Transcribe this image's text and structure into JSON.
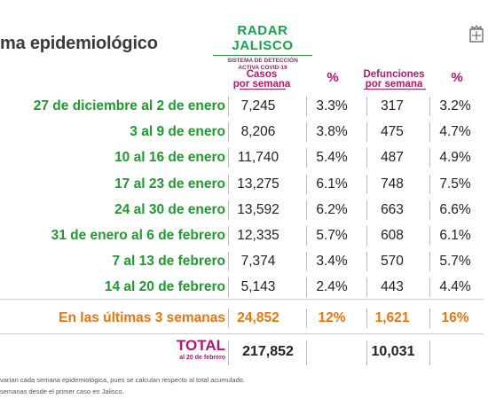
{
  "title": "ma epidemiológico",
  "logo": {
    "name": "RADAR JALISCO",
    "sub1": "SISTEMA DE DETECCIÓN",
    "sub2": "ACTIVA COVID-19"
  },
  "crest_icon": "jalisco-crest-icon",
  "headers": {
    "cases1": "Casos",
    "cases2": "por semana",
    "pct": "%",
    "deaths1": "Defunciones",
    "deaths2": "por semana",
    "pct2": "%"
  },
  "rows": [
    {
      "label": "27 de diciembre al 2 de enero",
      "cases": "7,245",
      "cases_pct": "3.3%",
      "deaths": "317",
      "deaths_pct": "3.2%"
    },
    {
      "label": "3 al 9 de enero",
      "cases": "8,206",
      "cases_pct": "3.8%",
      "deaths": "475",
      "deaths_pct": "4.7%"
    },
    {
      "label": "10 al 16 de enero",
      "cases": "11,740",
      "cases_pct": "5.4%",
      "deaths": "487",
      "deaths_pct": "4.9%"
    },
    {
      "label": "17 al 23 de enero",
      "cases": "13,275",
      "cases_pct": "6.1%",
      "deaths": "748",
      "deaths_pct": "7.5%"
    },
    {
      "label": "24 al 30 de enero",
      "cases": "13,592",
      "cases_pct": "6.2%",
      "deaths": "663",
      "deaths_pct": "6.6%"
    },
    {
      "label": "31 de enero al 6 de febrero",
      "cases": "12,335",
      "cases_pct": "5.7%",
      "deaths": "608",
      "deaths_pct": "6.1%"
    },
    {
      "label": "7 al 13 de febrero",
      "cases": "7,374",
      "cases_pct": "3.4%",
      "deaths": "570",
      "deaths_pct": "5.7%"
    },
    {
      "label": "14 al 20 de febrero",
      "cases": "5,143",
      "cases_pct": "2.4%",
      "deaths": "443",
      "deaths_pct": "4.4%"
    }
  ],
  "summary": {
    "label": "En las últimas 3 semanas",
    "cases": "24,852",
    "cases_pct": "12%",
    "deaths": "1,621",
    "deaths_pct": "16%"
  },
  "total": {
    "label": "TOTAL",
    "sub": "al 20 de febrero",
    "cases": "217,852",
    "deaths": "10,031"
  },
  "footnotes": [
    "varían cada semana epidemiológica, pues se calculan respecto al total acumulado.",
    "semanas desde el primer caso en Jalisco."
  ],
  "colors": {
    "green": "#1f9a2e",
    "magenta": "#b5156d",
    "orange": "#e8760f"
  }
}
